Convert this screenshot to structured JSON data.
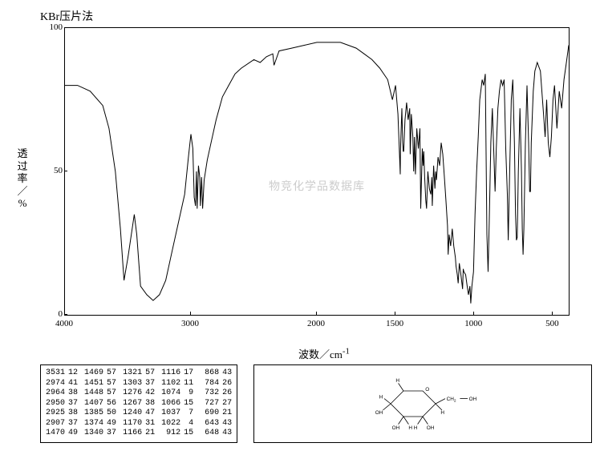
{
  "title": "KBr压片法",
  "y_label_chars": [
    "透",
    "过",
    "率",
    "／",
    "%"
  ],
  "x_label": "波数／cm",
  "x_label_sup": "-1",
  "watermark": "物竞化学品数据库",
  "chart": {
    "type": "line",
    "background_color": "#ffffff",
    "line_color": "#000000",
    "line_width": 1,
    "x_range": [
      4000,
      400
    ],
    "x_ticks": [
      4000,
      3000,
      2000,
      1500,
      1000,
      500
    ],
    "y_range": [
      0,
      100
    ],
    "y_ticks": [
      0,
      50,
      100
    ],
    "series_xy": [
      [
        4000,
        80
      ],
      [
        3900,
        80
      ],
      [
        3800,
        78
      ],
      [
        3700,
        73
      ],
      [
        3650,
        65
      ],
      [
        3600,
        50
      ],
      [
        3560,
        30
      ],
      [
        3531,
        12
      ],
      [
        3500,
        20
      ],
      [
        3450,
        35
      ],
      [
        3430,
        28
      ],
      [
        3400,
        10
      ],
      [
        3350,
        7
      ],
      [
        3300,
        5
      ],
      [
        3250,
        7
      ],
      [
        3200,
        12
      ],
      [
        3150,
        22
      ],
      [
        3100,
        32
      ],
      [
        3050,
        42
      ],
      [
        3020,
        55
      ],
      [
        3000,
        63
      ],
      [
        2985,
        58
      ],
      [
        2974,
        41
      ],
      [
        2964,
        38
      ],
      [
        2956,
        50
      ],
      [
        2950,
        37
      ],
      [
        2940,
        52
      ],
      [
        2930,
        48
      ],
      [
        2925,
        38
      ],
      [
        2915,
        48
      ],
      [
        2907,
        37
      ],
      [
        2895,
        47
      ],
      [
        2870,
        54
      ],
      [
        2840,
        60
      ],
      [
        2800,
        68
      ],
      [
        2750,
        76
      ],
      [
        2700,
        80
      ],
      [
        2650,
        84
      ],
      [
        2600,
        86
      ],
      [
        2500,
        89
      ],
      [
        2450,
        88
      ],
      [
        2400,
        90
      ],
      [
        2350,
        91
      ],
      [
        2340,
        87
      ],
      [
        2300,
        92
      ],
      [
        2200,
        93
      ],
      [
        2100,
        94
      ],
      [
        2000,
        95
      ],
      [
        1950,
        95
      ],
      [
        1900,
        95
      ],
      [
        1850,
        95
      ],
      [
        1800,
        94
      ],
      [
        1750,
        93
      ],
      [
        1700,
        91
      ],
      [
        1650,
        89
      ],
      [
        1600,
        86
      ],
      [
        1550,
        82
      ],
      [
        1520,
        75
      ],
      [
        1500,
        80
      ],
      [
        1485,
        70
      ],
      [
        1470,
        49
      ],
      [
        1469,
        57
      ],
      [
        1460,
        72
      ],
      [
        1455,
        60
      ],
      [
        1451,
        57
      ],
      [
        1448,
        57
      ],
      [
        1440,
        68
      ],
      [
        1430,
        74
      ],
      [
        1420,
        68
      ],
      [
        1410,
        72
      ],
      [
        1407,
        56
      ],
      [
        1400,
        70
      ],
      [
        1390,
        62
      ],
      [
        1385,
        50
      ],
      [
        1380,
        62
      ],
      [
        1374,
        49
      ],
      [
        1365,
        65
      ],
      [
        1355,
        58
      ],
      [
        1345,
        65
      ],
      [
        1340,
        37
      ],
      [
        1330,
        58
      ],
      [
        1325,
        52
      ],
      [
        1321,
        57
      ],
      [
        1315,
        48
      ],
      [
        1308,
        40
      ],
      [
        1303,
        37
      ],
      [
        1295,
        50
      ],
      [
        1285,
        44
      ],
      [
        1276,
        42
      ],
      [
        1270,
        48
      ],
      [
        1267,
        38
      ],
      [
        1258,
        52
      ],
      [
        1250,
        44
      ],
      [
        1245,
        50
      ],
      [
        1240,
        47
      ],
      [
        1230,
        55
      ],
      [
        1220,
        52
      ],
      [
        1210,
        60
      ],
      [
        1200,
        56
      ],
      [
        1190,
        48
      ],
      [
        1180,
        40
      ],
      [
        1170,
        31
      ],
      [
        1166,
        21
      ],
      [
        1160,
        28
      ],
      [
        1150,
        24
      ],
      [
        1140,
        30
      ],
      [
        1130,
        24
      ],
      [
        1120,
        20
      ],
      [
        1116,
        17
      ],
      [
        1108,
        14
      ],
      [
        1102,
        11
      ],
      [
        1095,
        18
      ],
      [
        1085,
        14
      ],
      [
        1074,
        9
      ],
      [
        1070,
        16
      ],
      [
        1066,
        15
      ],
      [
        1055,
        14
      ],
      [
        1045,
        10
      ],
      [
        1037,
        7
      ],
      [
        1028,
        10
      ],
      [
        1022,
        4
      ],
      [
        1015,
        10
      ],
      [
        1005,
        15
      ],
      [
        995,
        35
      ],
      [
        985,
        50
      ],
      [
        975,
        62
      ],
      [
        965,
        75
      ],
      [
        950,
        82
      ],
      [
        940,
        80
      ],
      [
        930,
        84
      ],
      [
        920,
        28
      ],
      [
        912,
        15
      ],
      [
        905,
        32
      ],
      [
        895,
        60
      ],
      [
        885,
        72
      ],
      [
        875,
        55
      ],
      [
        868,
        43
      ],
      [
        860,
        58
      ],
      [
        850,
        72
      ],
      [
        840,
        78
      ],
      [
        830,
        82
      ],
      [
        820,
        80
      ],
      [
        810,
        82
      ],
      [
        800,
        58
      ],
      [
        790,
        42
      ],
      [
        784,
        26
      ],
      [
        775,
        50
      ],
      [
        765,
        75
      ],
      [
        755,
        82
      ],
      [
        745,
        60
      ],
      [
        738,
        35
      ],
      [
        732,
        26
      ],
      [
        727,
        27
      ],
      [
        720,
        50
      ],
      [
        710,
        72
      ],
      [
        700,
        50
      ],
      [
        695,
        30
      ],
      [
        690,
        21
      ],
      [
        685,
        30
      ],
      [
        675,
        60
      ],
      [
        665,
        80
      ],
      [
        655,
        60
      ],
      [
        648,
        43
      ],
      [
        643,
        43
      ],
      [
        638,
        60
      ],
      [
        625,
        78
      ],
      [
        615,
        85
      ],
      [
        600,
        88
      ],
      [
        580,
        85
      ],
      [
        560,
        70
      ],
      [
        550,
        62
      ],
      [
        540,
        75
      ],
      [
        530,
        60
      ],
      [
        520,
        55
      ],
      [
        510,
        62
      ],
      [
        500,
        75
      ],
      [
        490,
        80
      ],
      [
        475,
        65
      ],
      [
        460,
        78
      ],
      [
        445,
        72
      ],
      [
        430,
        82
      ],
      [
        415,
        88
      ],
      [
        400,
        94
      ]
    ]
  },
  "peak_table": {
    "columns": [
      {
        "wavenumbers": [
          3531,
          2974,
          2964,
          2950,
          2925,
          2907,
          1470
        ],
        "trans": [
          12,
          41,
          38,
          37,
          38,
          37,
          49
        ]
      },
      {
        "wavenumbers": [
          1469,
          1451,
          1448,
          1407,
          1385,
          1374,
          1340
        ],
        "trans": [
          57,
          57,
          57,
          56,
          50,
          49,
          37
        ]
      },
      {
        "wavenumbers": [
          1321,
          1303,
          1276,
          1267,
          1240,
          1170,
          1166
        ],
        "trans": [
          57,
          37,
          42,
          38,
          47,
          31,
          21
        ]
      },
      {
        "wavenumbers": [
          1116,
          1102,
          1074,
          1066,
          1037,
          1022,
          912
        ],
        "trans": [
          17,
          11,
          9,
          15,
          7,
          4,
          15
        ]
      },
      {
        "wavenumbers": [
          868,
          784,
          732,
          727,
          690,
          643,
          648
        ],
        "trans": [
          43,
          26,
          26,
          27,
          21,
          43,
          43
        ]
      }
    ]
  },
  "structure_labels": {
    "H": "H",
    "OH": "OH",
    "O": "O",
    "CH2": "CH",
    "CH2_sub": "2"
  }
}
